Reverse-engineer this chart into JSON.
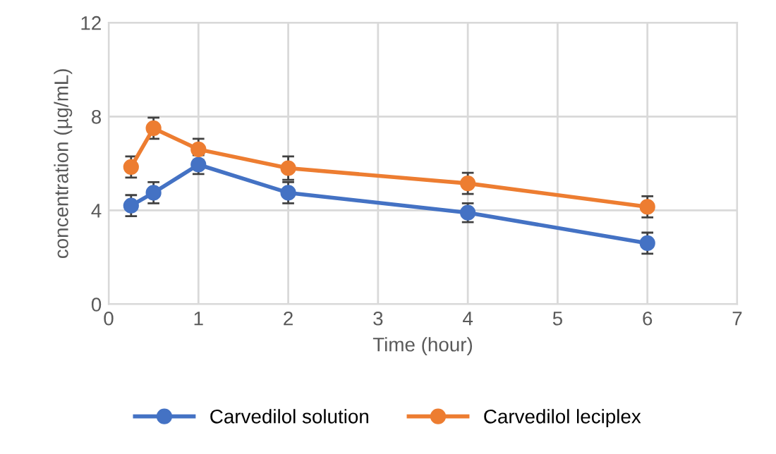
{
  "chart_data": {
    "type": "line",
    "xlabel": "Time (hour)",
    "ylabel": "concentration (µg/mL)",
    "x": [
      0.25,
      0.5,
      1,
      2,
      4,
      6
    ],
    "series": [
      {
        "name": "Carvedilol solution",
        "color": "#4472c4",
        "values": [
          4.2,
          4.75,
          5.95,
          4.75,
          3.9,
          2.6
        ],
        "errors": [
          0.45,
          0.45,
          0.4,
          0.45,
          0.4,
          0.45
        ]
      },
      {
        "name": "Carvedilol leciplex",
        "color": "#ed7d31",
        "values": [
          5.85,
          7.5,
          6.6,
          5.8,
          5.15,
          4.15
        ],
        "errors": [
          0.45,
          0.45,
          0.45,
          0.5,
          0.45,
          0.45
        ]
      }
    ],
    "xlim": [
      0,
      7
    ],
    "xticks": [
      0,
      1,
      2,
      3,
      4,
      5,
      6,
      7
    ],
    "ylim": [
      0,
      12
    ],
    "yticks": [
      0,
      4,
      8,
      12
    ],
    "grid": true,
    "legend": "bottom",
    "marker": "circle",
    "line_style": "solid"
  }
}
